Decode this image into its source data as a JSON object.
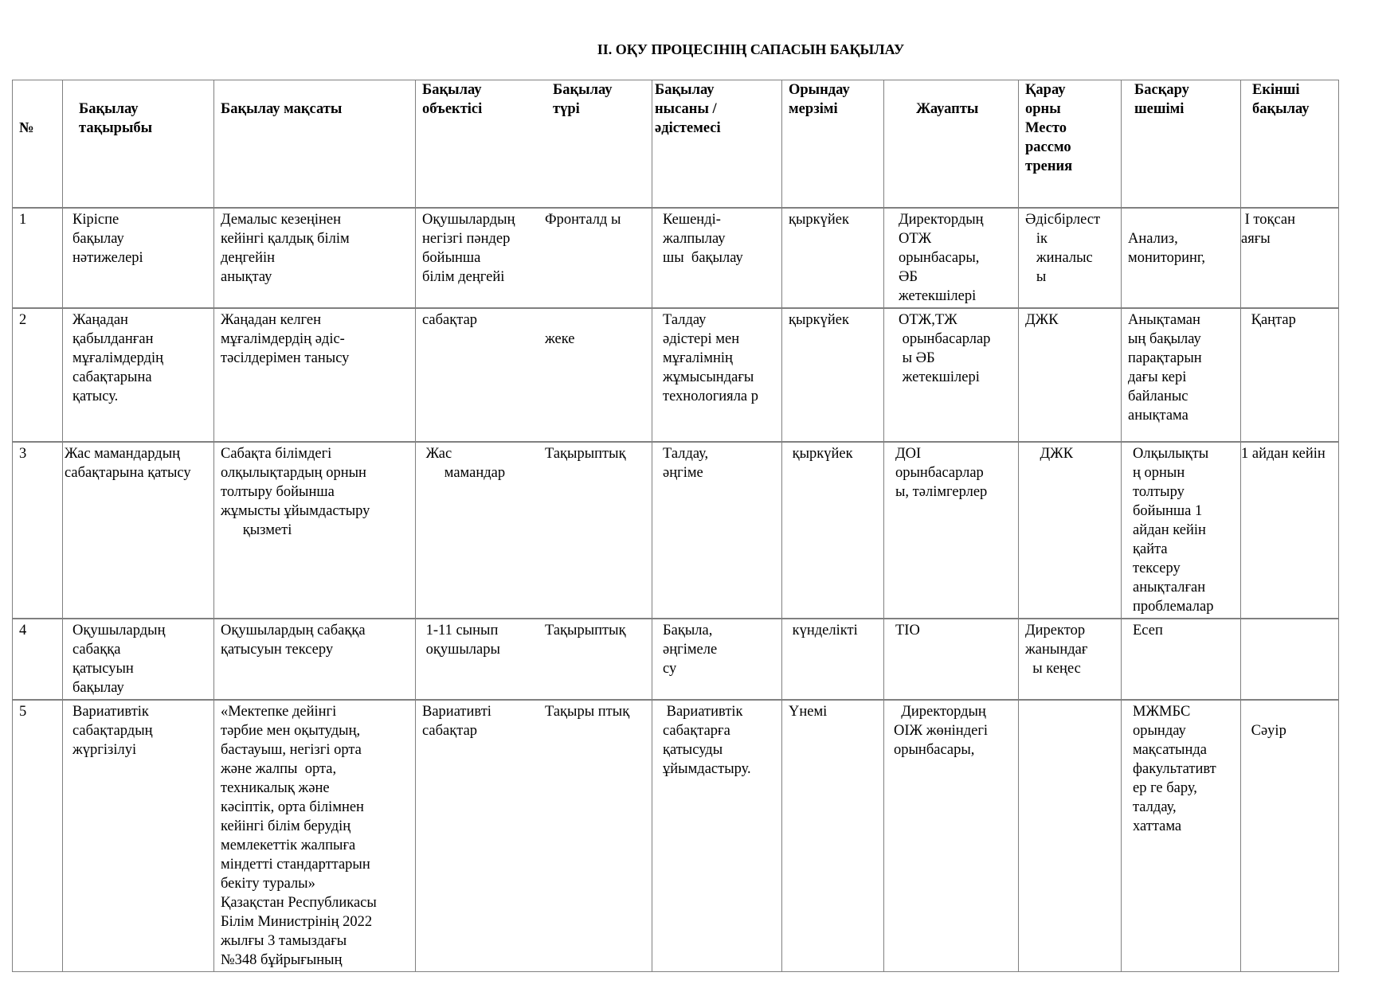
{
  "title": "II. ОҚУ ПРОЦЕСІНІҢ САПАСЫН БАҚЫЛАУ",
  "headers": [
    "\n\n№",
    "\nБақылау\nтақырыбы",
    "\nБақылау мақсаты",
    "Бақылау\nобъектісі",
    "Бақылау\nтүрі",
    "Бақылау\nнысаны /\nәдістемесі",
    "Орындау\nмерзімі",
    "\nЖауапты",
    "Қарау\nорны\nМесто\nрассмо\nтрения",
    "Басқару\nшешімі",
    "Екінші\nбақылау"
  ],
  "rows": [
    [
      "1",
      "Кіріспе\nбақылау\nнәтижелері",
      "Демалыс кезеңінен\nкейінгі қалдық білім\nдеңгейін\nанықтау",
      "Оқушылардың\nнегізгі пәндер\nбойынша\nбілім деңгейі",
      "Фронталд ы",
      "Кешенді-\nжалпылау\nшы  бақылау",
      "қыркүйек",
      "Директордың\nОТЖ\nорынбасары,\nӘБ\nжетекшілері",
      "Әдісбірлест\n   ік\n   жиналыс\n   ы",
      "\nАнализ,\nмониторинг,",
      " I тоқсан\nаяғы"
    ],
    [
      "2",
      "Жаңадан\nқабылданған\nмұғалімдердің\nсабақтарына\nқатысу.",
      "Жаңадан келген\nмұғалімдердің әдіс-\nтәсілдерімен танысу",
      "сабақтар",
      "\nжеке",
      "Талдау\nәдістері мен\nмұғалімнің\nжұмысындағы\nтехнологияла р",
      "қыркүйек",
      "ОТЖ,ТЖ\n орынбасарлар\n ы ӘБ\n жетекшілері",
      "ДЖК",
      "Анықтаман\nың бақылау\nпарақтарын\nдағы кері\nбайланыс\nанықтама",
      " Қаңтар"
    ],
    [
      "3",
      "Жас мамандардың\nсабақтарына қатысу",
      "Сабақта білімдегі\nолқылықтардың орнын\nтолтыру бойынша\nжұмысты ұйымдастыру\n      қызметі",
      " Жас\n      мамандар",
      "Тақырыптық",
      "Талдау,\nәңгіме",
      " қыркүйек",
      "ДОІ\nорынбасарлар\nы, тәлімгерлер",
      "    ДЖК",
      "Олқылықты\nң орнын\nтолтыру\nбойынша 1\nайдан кейін\nқайта\nтексеру\nанықталған\nпроблемалар",
      "1 айдан кейін"
    ],
    [
      "4",
      "Оқушылардың\nсабаққа\nқатысуын\nбақылау",
      "Оқушылардың сабаққа\nқатысуын тексеру",
      " 1-11 сынып\n оқушылары",
      "Тақырыптық",
      "Бақыла,\nәңгімеле\nсу",
      " күнделікті",
      "ТІО",
      "Директор\nжанындағ\n  ы кеңес",
      "Есеп",
      ""
    ],
    [
      "5",
      "Вариативтік\nсабақтардың\nжүргізілуі",
      "«Мектепке дейінгі\nтәрбие мен оқытудың,\nбастауыш, негізгі орта\nжәне жалпы  орта,\nтехникалық және\nкәсіптік, орта білімнен\nкейінгі білім берудің\nмемлекеттік жалпыға\nміндетті стандарттарын\nбекіту туралы»\nҚазақстан Республикасы\nБілім Министрінің 2022\nжылғы 3 тамыздағы\n№348 бұйрығының",
      "Вариативті\nсабақтар",
      "Тақыры птық",
      " Вариативтік\nсабақтарға\nқатысуды\nұйымдастыру.",
      "Үнемі",
      "  Директордың\nОІЖ жөніндегі\nорынбасары,",
      "",
      "МЖМБС\nорындау\nмақсатында\nфакультативт\nер ге бару,\nталдау,\nхаттама",
      "\n Сәуір"
    ]
  ]
}
